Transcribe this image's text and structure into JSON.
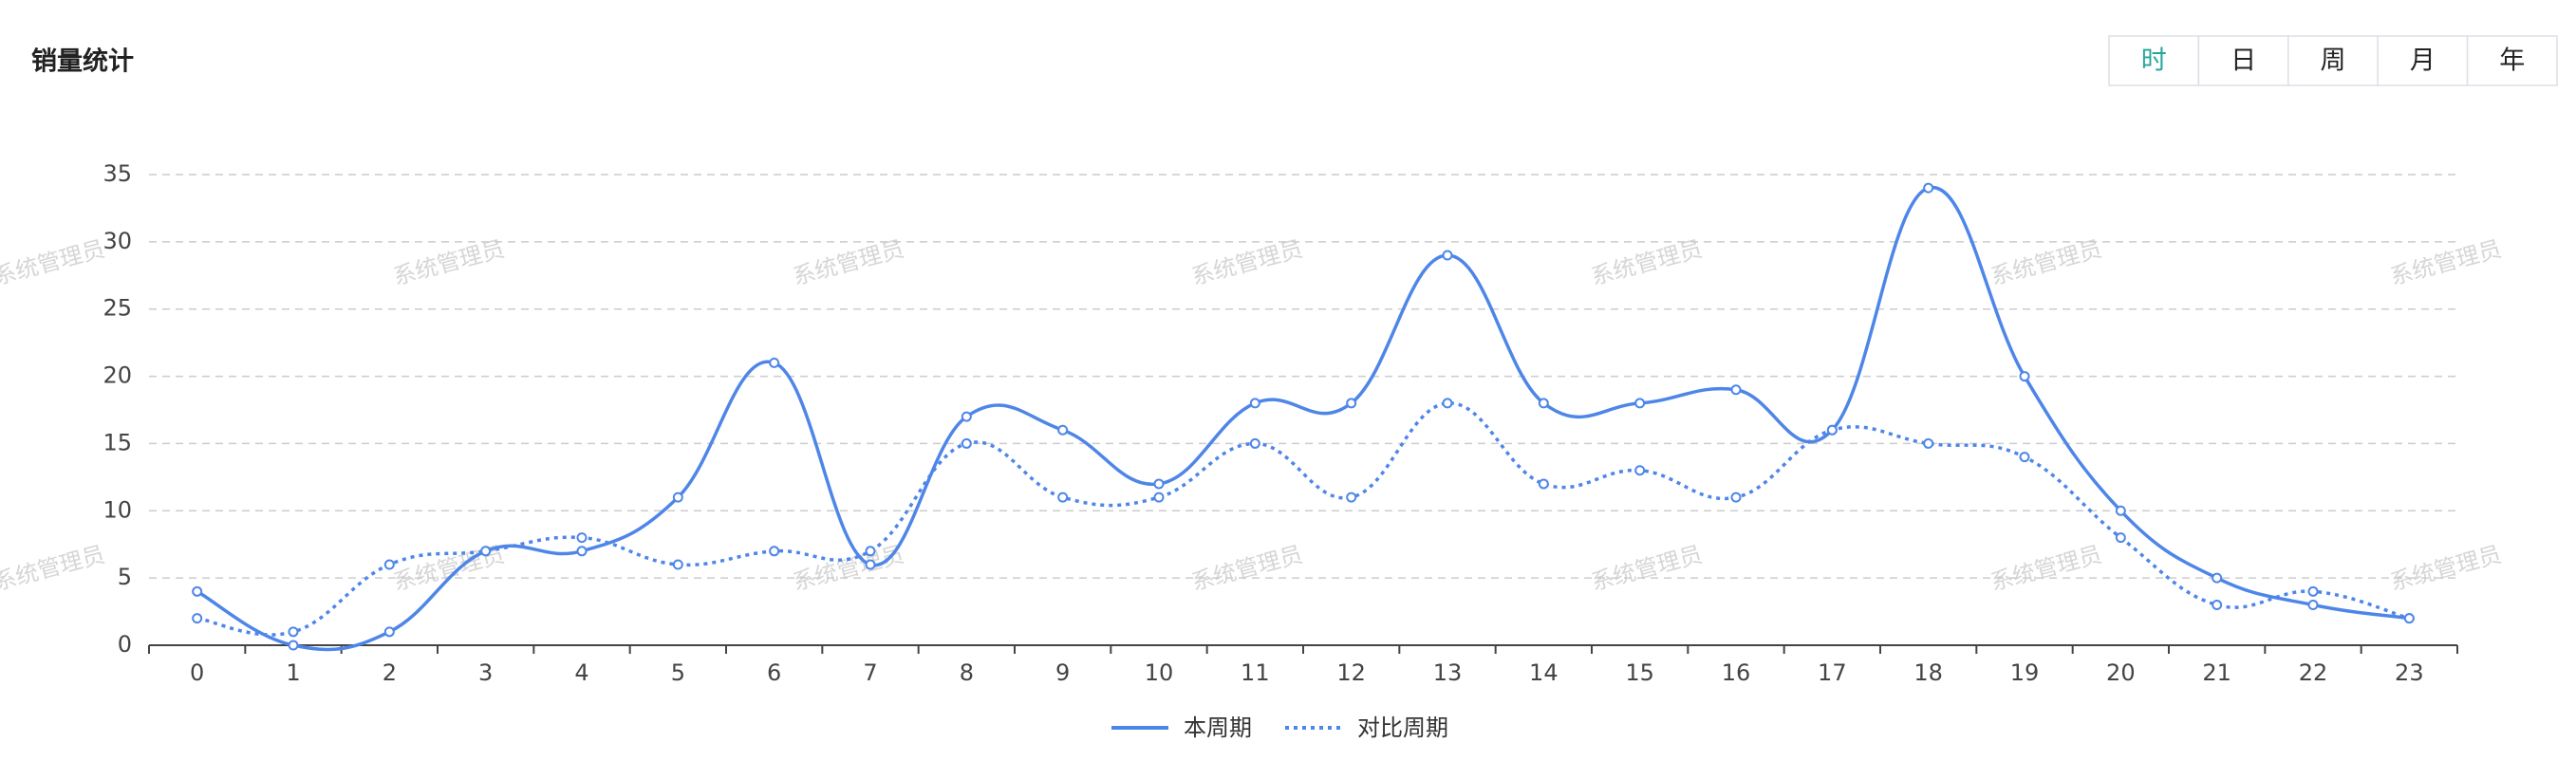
{
  "chart_data": {
    "type": "line",
    "title": "销量统计",
    "watermark": "系统管理员",
    "period_buttons": [
      "时",
      "日",
      "周",
      "月",
      "年"
    ],
    "active_button": "时",
    "categories": [
      "0",
      "1",
      "2",
      "3",
      "4",
      "5",
      "6",
      "7",
      "8",
      "9",
      "10",
      "11",
      "12",
      "13",
      "14",
      "15",
      "16",
      "17",
      "18",
      "19",
      "20",
      "21",
      "22",
      "23"
    ],
    "series": [
      {
        "name": "本周期",
        "color": "#4e86e8",
        "dash": "solid",
        "values": [
          4,
          0,
          1,
          7,
          7,
          11,
          21,
          6,
          17,
          16,
          12,
          18,
          18,
          29,
          18,
          18,
          19,
          16,
          34,
          20,
          10,
          5,
          3,
          2
        ]
      },
      {
        "name": "对比周期",
        "color": "#4e86e8",
        "dash": "dotted",
        "values": [
          2,
          1,
          6,
          7,
          8,
          6,
          7,
          7,
          15,
          11,
          11,
          15,
          11,
          18,
          12,
          13,
          11,
          16,
          15,
          14,
          8,
          3,
          4,
          2
        ]
      }
    ],
    "ylim": [
      0,
      35
    ],
    "yticks": [
      0,
      5,
      10,
      15,
      20,
      25,
      30,
      35
    ],
    "grid": true
  }
}
